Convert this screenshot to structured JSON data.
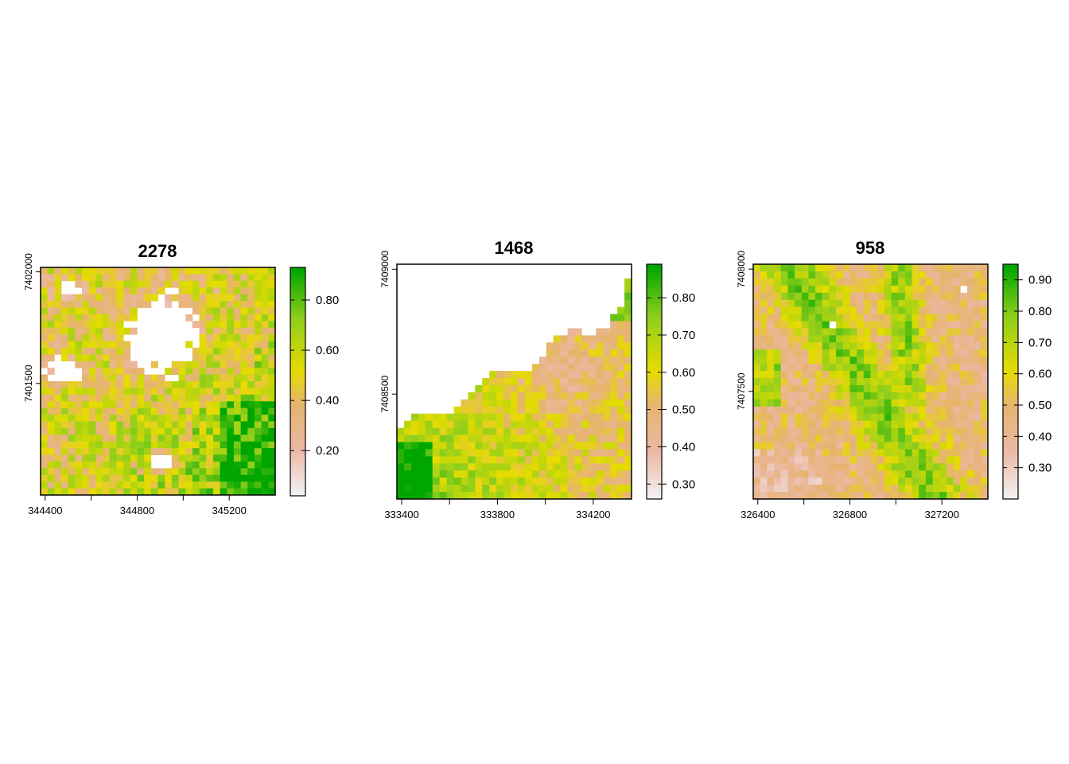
{
  "chart_data": [
    {
      "type": "heatmap",
      "title": "2278",
      "xlabel": "",
      "ylabel": "",
      "x_ticks": [
        344400,
        344800,
        345200
      ],
      "x_minor_ticks": [
        344600,
        345000
      ],
      "y_ticks": [
        7401500,
        7402000
      ],
      "xlim": [
        344380,
        345400
      ],
      "ylim": [
        7401000,
        7402020
      ],
      "value_range": [
        0.02,
        0.93
      ],
      "legend_ticks": [
        0.2,
        0.4,
        0.6,
        0.8
      ],
      "legend_tick_labels": [
        "0.20",
        "0.40",
        "0.60",
        "0.80"
      ],
      "grid_cells": [
        34,
        34
      ],
      "missing_value_regions": "white areas (no data)"
    },
    {
      "type": "heatmap",
      "title": "1468",
      "xlabel": "",
      "ylabel": "",
      "x_ticks": [
        333400,
        333800,
        334200
      ],
      "x_minor_ticks": [
        333600,
        334000
      ],
      "y_ticks": [
        7408500,
        7409000
      ],
      "xlim": [
        333380,
        334360
      ],
      "ylim": [
        7408080,
        7409020
      ],
      "value_range": [
        0.26,
        0.89
      ],
      "legend_ticks": [
        0.3,
        0.4,
        0.5,
        0.6,
        0.7,
        0.8
      ],
      "legend_tick_labels": [
        "0.30",
        "0.40",
        "0.50",
        "0.60",
        "0.70",
        "0.80"
      ],
      "grid_cells": [
        33,
        33
      ],
      "missing_value_regions": "white area at top-left (no data)"
    },
    {
      "type": "heatmap",
      "title": "958",
      "xlabel": "",
      "ylabel": "",
      "x_ticks": [
        326400,
        326800,
        327200
      ],
      "x_minor_ticks": [
        326600,
        327000
      ],
      "y_ticks": [
        7407500,
        7408000
      ],
      "xlim": [
        326380,
        327400
      ],
      "ylim": [
        7407060,
        7408020
      ],
      "value_range": [
        0.2,
        0.95
      ],
      "legend_ticks": [
        0.3,
        0.4,
        0.5,
        0.6,
        0.7,
        0.8,
        0.9
      ],
      "legend_tick_labels": [
        "0.30",
        "0.40",
        "0.50",
        "0.60",
        "0.70",
        "0.80",
        "0.90"
      ],
      "grid_cells": [
        34,
        33
      ],
      "missing_value_regions": "a few scattered white cells near top"
    }
  ],
  "colors": {
    "palette_low": "#f2f2f2",
    "palette_pink": "#ebb8a4",
    "palette_tan": "#e6b46e",
    "palette_yellow": "#e6dc00",
    "palette_lime": "#8fce1c",
    "palette_high": "#00a600"
  }
}
